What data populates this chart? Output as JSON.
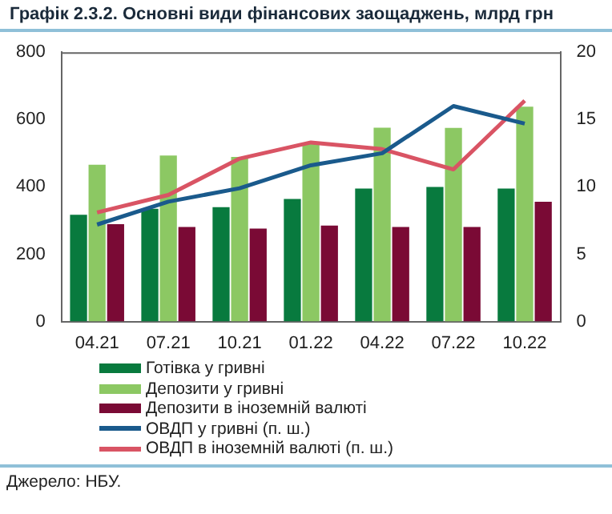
{
  "chart_data": {
    "type": "bar",
    "title": "Графік 2.3.2. Основні види фінансових заощаджень, млрд грн",
    "categories": [
      "04.21",
      "07.21",
      "10.21",
      "01.22",
      "04.22",
      "07.22",
      "10.22"
    ],
    "series": [
      {
        "name": "Готівка у гривні",
        "color": "#087a3e",
        "values": [
          317,
          335,
          340,
          364,
          395,
          400,
          395
        ]
      },
      {
        "name": "Депозити у гривні",
        "color": "#8cc863",
        "values": [
          466,
          493,
          489,
          530,
          576,
          575,
          638
        ]
      },
      {
        "name": "Депозити в іноземній валюті",
        "color": "#7a0a35",
        "values": [
          289,
          281,
          276,
          285,
          281,
          281,
          356
        ]
      },
      {
        "name": "ОВДП у гривні (п. ш.)",
        "type": "line",
        "axis": "y2",
        "color": "#1a5a8c",
        "values": [
          7.2,
          8.9,
          9.9,
          11.6,
          12.5,
          16.0,
          14.7
        ]
      },
      {
        "name": "ОВДП в іноземній валюті (п. ш.)",
        "type": "line",
        "axis": "y2",
        "color": "#d95464",
        "values": [
          8.1,
          9.4,
          12.1,
          13.3,
          12.8,
          11.3,
          16.4
        ]
      }
    ],
    "ylim": [
      0,
      800
    ],
    "yticks": [
      0,
      200,
      400,
      600,
      800
    ],
    "y2lim": [
      0,
      20
    ],
    "y2ticks": [
      0,
      5,
      10,
      15,
      20
    ],
    "grid": false,
    "legend": "bottom",
    "marker": "none",
    "annotations": [
      "Джерело: НБУ."
    ]
  }
}
